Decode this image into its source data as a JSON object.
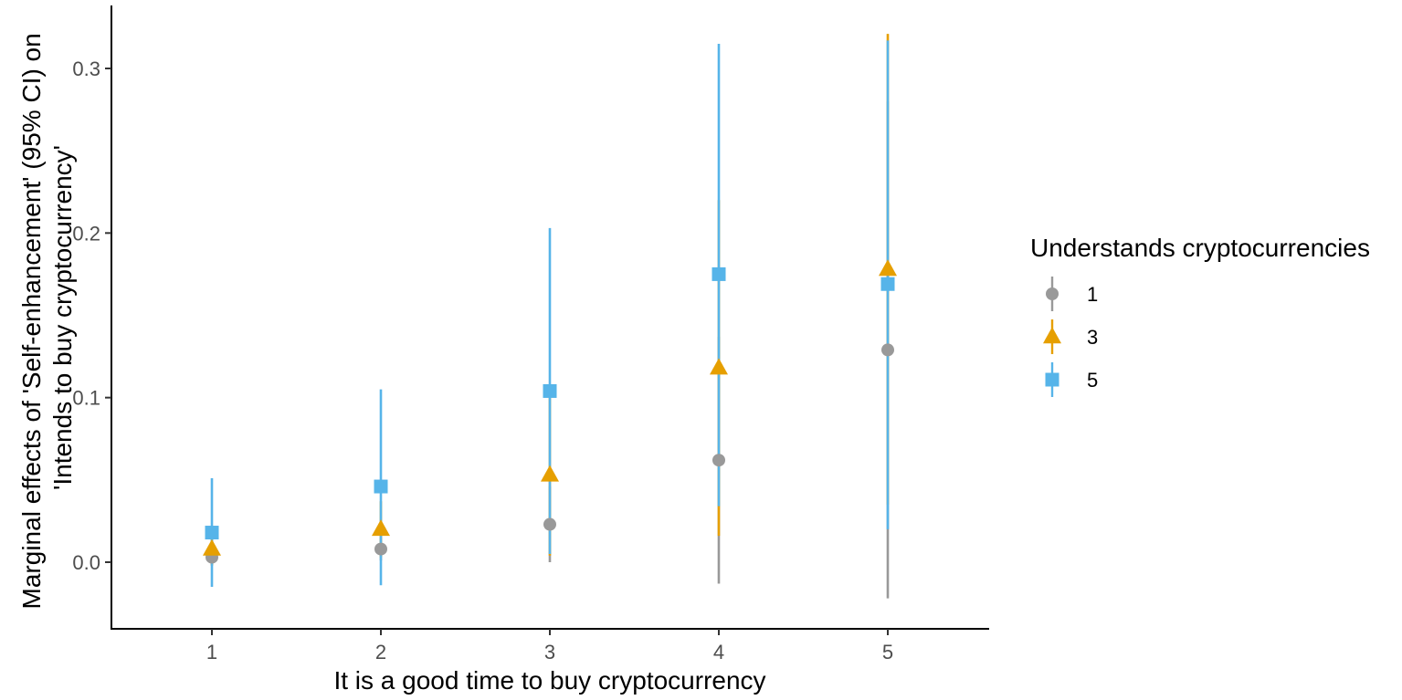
{
  "chart_data": {
    "type": "scatter",
    "subtype": "pointrange",
    "title": "",
    "xlabel": "It is a good time to buy cryptocurrency",
    "ylabel_lines": [
      "Marginal effects of 'Self-enhancement' (95% CI) on",
      "'Intends to buy cryptocurrency'"
    ],
    "x_categories": [
      "1",
      "2",
      "3",
      "4",
      "5"
    ],
    "y_ticks": [
      0.0,
      0.1,
      0.2,
      0.3
    ],
    "y_tick_labels": [
      "0.0",
      "0.1",
      "0.2",
      "0.3"
    ],
    "ylim": [
      -0.04,
      0.34
    ],
    "grid": false,
    "legend": {
      "title": "Understands cryptocurrencies",
      "position": "right"
    },
    "series": [
      {
        "name": "1",
        "marker": "circle",
        "color": "#999999",
        "points": [
          {
            "x": "1",
            "y": 0.003,
            "lo": -0.002,
            "hi": 0.008
          },
          {
            "x": "2",
            "y": 0.008,
            "lo": 0.001,
            "hi": 0.015
          },
          {
            "x": "3",
            "y": 0.023,
            "lo": 0.0,
            "hi": 0.046
          },
          {
            "x": "4",
            "y": 0.062,
            "lo": -0.013,
            "hi": 0.137
          },
          {
            "x": "5",
            "y": 0.129,
            "lo": -0.022,
            "hi": 0.28
          }
        ]
      },
      {
        "name": "3",
        "marker": "triangle",
        "color": "#E69F00",
        "points": [
          {
            "x": "1",
            "y": 0.008,
            "lo": -0.002,
            "hi": 0.018
          },
          {
            "x": "2",
            "y": 0.02,
            "lo": 0.003,
            "hi": 0.037
          },
          {
            "x": "3",
            "y": 0.053,
            "lo": 0.004,
            "hi": 0.102
          },
          {
            "x": "4",
            "y": 0.118,
            "lo": 0.016,
            "hi": 0.22
          },
          {
            "x": "5",
            "y": 0.178,
            "lo": 0.035,
            "hi": 0.321
          }
        ]
      },
      {
        "name": "5",
        "marker": "square",
        "color": "#56B4E9",
        "points": [
          {
            "x": "1",
            "y": 0.018,
            "lo": -0.015,
            "hi": 0.051
          },
          {
            "x": "2",
            "y": 0.046,
            "lo": -0.014,
            "hi": 0.105
          },
          {
            "x": "3",
            "y": 0.104,
            "lo": 0.005,
            "hi": 0.203
          },
          {
            "x": "4",
            "y": 0.175,
            "lo": 0.034,
            "hi": 0.315
          },
          {
            "x": "5",
            "y": 0.169,
            "lo": 0.02,
            "hi": 0.317
          }
        ]
      }
    ]
  }
}
